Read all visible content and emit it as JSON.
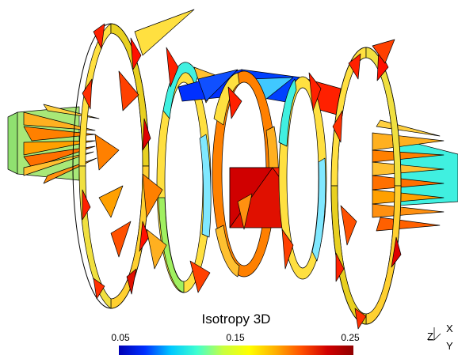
{
  "colorbar": {
    "title": "Isotropy 3D",
    "ticks": [
      "0.05",
      "0.15",
      "0.25"
    ],
    "colors": [
      "#0000b4",
      "#0030ff",
      "#00c8ff",
      "#40ffd0",
      "#c8ff40",
      "#ffff00",
      "#ffb000",
      "#ff5000",
      "#d00000",
      "#900000"
    ]
  },
  "axes": {
    "x": "X",
    "y": "Y",
    "z": "Z"
  }
}
